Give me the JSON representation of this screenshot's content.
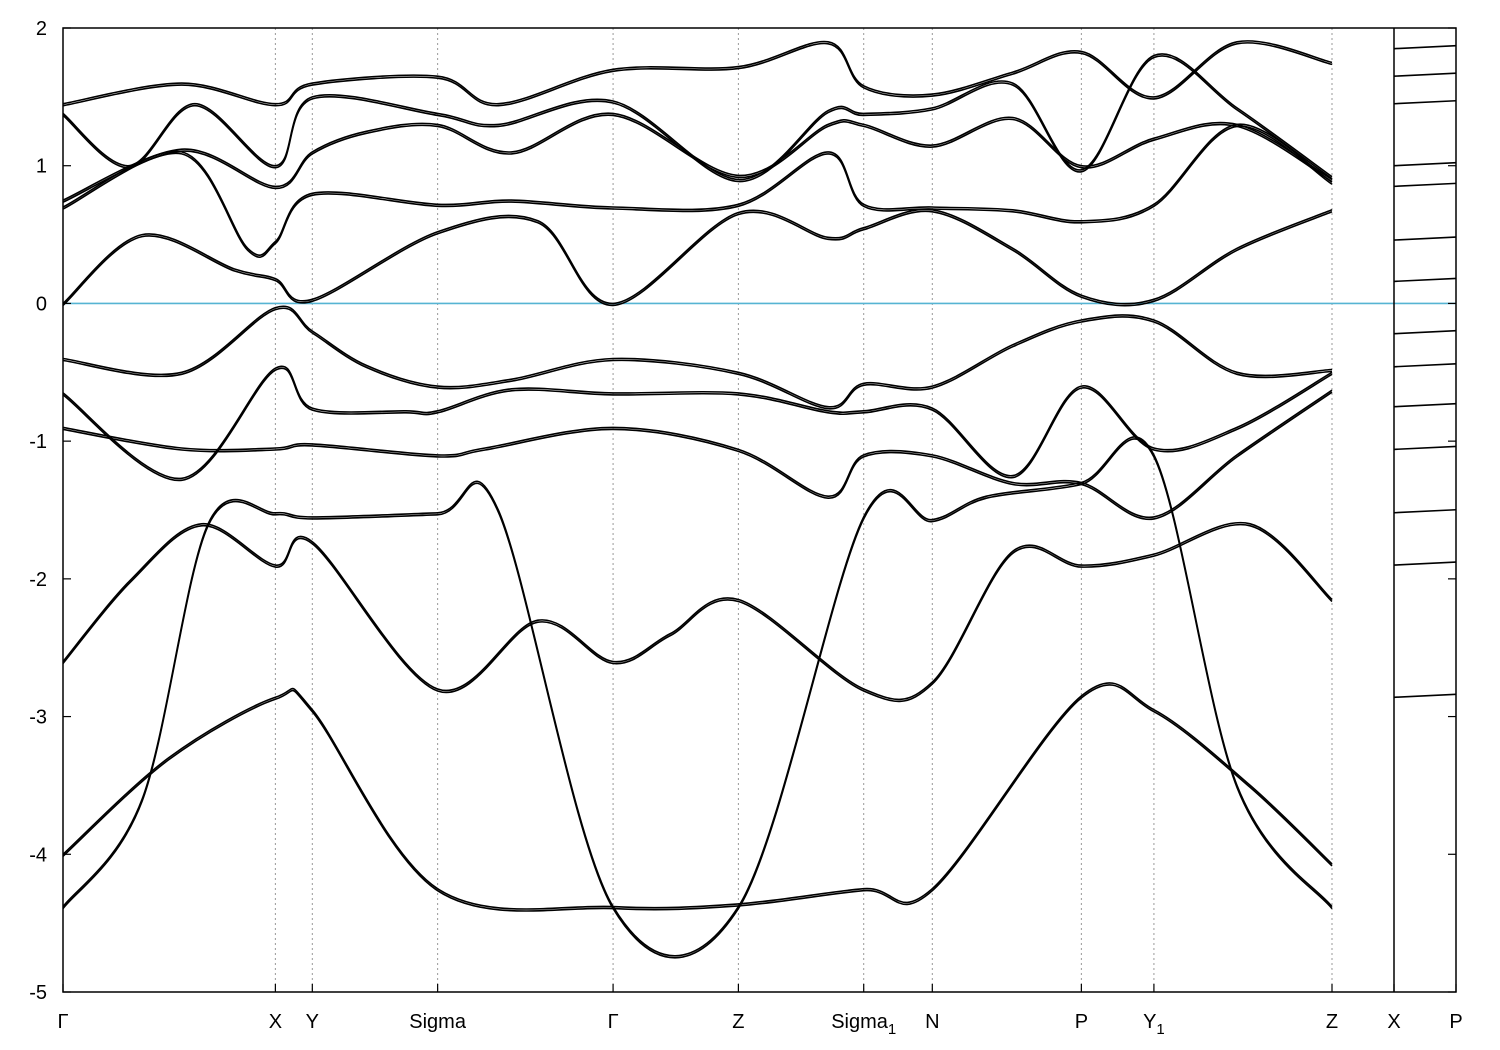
{
  "chart_data": {
    "type": "line",
    "title": "",
    "xlabel": "",
    "ylabel": "",
    "ylim": [
      -5,
      2
    ],
    "y_ticks": [
      "2",
      "1",
      "0",
      "-1",
      "-2",
      "-3",
      "-4",
      "-5"
    ],
    "y_tick_values": [
      2,
      1,
      0,
      -1,
      -2,
      -3,
      -4,
      -5
    ],
    "x_ticks": [
      "Γ",
      "X",
      "Y",
      "Sigma",
      "Γ",
      "Z",
      "Sigma",
      "N",
      "P",
      "Y",
      "Z",
      "X",
      "P"
    ],
    "x_tick_subscripts": [
      "",
      "",
      "",
      "",
      "",
      "",
      "1",
      "",
      "",
      "1",
      "",
      "",
      ""
    ],
    "x_tick_positions": [
      0,
      1.61,
      1.89,
      2.84,
      4.17,
      5.12,
      6.07,
      6.59,
      7.72,
      8.27,
      9.62,
      10.09,
      10.56
    ],
    "x_range": [
      0,
      10.56
    ],
    "segment_break_at": 10.09,
    "grid": "vertical dotted lines at high-symmetry points",
    "fermi_level": 0,
    "fermi_color": "#56b4d3",
    "series": [
      {
        "x": [
          0,
          0.52,
          1.05,
          1.61,
          1.89,
          2.84,
          3.6,
          4.17,
          4.6,
          5.12,
          6.07,
          6.59,
          7.2,
          7.72,
          8.27,
          9.0,
          9.62
        ],
        "values": [
          -2.6,
          -2.0,
          -1.6,
          -1.9,
          -1.73,
          -2.8,
          -2.3,
          -2.6,
          -2.4,
          -2.15,
          -2.8,
          -2.75,
          -1.8,
          -1.9,
          -1.82,
          -1.6,
          -2.15
        ]
      },
      {
        "x": [
          0,
          0.8,
          1.61,
          1.89,
          2.84,
          4.17,
          5.12,
          6.07,
          6.59,
          7.72,
          8.27,
          9.0,
          9.62
        ],
        "values": [
          -4.0,
          -3.3,
          -2.86,
          -2.95,
          -4.25,
          -4.38,
          -4.36,
          -4.25,
          -4.25,
          -2.85,
          -2.95,
          -3.5,
          -4.07
        ]
      },
      {
        "x": [
          0,
          0.6,
          1.1,
          1.61,
          1.89,
          2.84,
          3.3,
          4.17,
          5.12,
          6.07,
          6.59,
          7.0,
          7.72,
          8.27,
          8.9,
          9.62
        ],
        "values": [
          -4.38,
          -3.6,
          -1.6,
          -1.52,
          -1.55,
          -1.52,
          -1.5,
          -4.38,
          -4.38,
          -1.55,
          -1.57,
          -1.4,
          -1.3,
          -1.1,
          -3.5,
          -4.38
        ]
      },
      {
        "x": [
          0,
          0.9,
          1.61,
          1.89,
          2.6,
          2.84,
          3.4,
          4.17,
          5.12,
          5.8,
          6.07,
          6.59,
          7.2,
          7.72,
          8.27,
          8.9,
          9.62
        ],
        "values": [
          -0.65,
          -1.27,
          -0.47,
          -0.76,
          -0.78,
          -0.78,
          -0.62,
          -0.65,
          -0.65,
          -0.78,
          -0.78,
          -0.76,
          -1.25,
          -0.6,
          -1.05,
          -0.9,
          -0.5
        ]
      },
      {
        "x": [
          0,
          0.9,
          1.61,
          1.89,
          2.84,
          3.2,
          4.17,
          5.12,
          5.8,
          6.07,
          6.59,
          7.2,
          7.72,
          8.27,
          8.9,
          9.62
        ],
        "values": [
          -0.9,
          -1.05,
          -1.05,
          -1.02,
          -1.1,
          -1.05,
          -0.9,
          -1.06,
          -1.4,
          -1.1,
          -1.1,
          -1.3,
          -1.3,
          -1.55,
          -1.1,
          -0.63
        ]
      },
      {
        "x": [
          0,
          0.9,
          1.61,
          1.89,
          2.3,
          2.84,
          3.4,
          4.17,
          5.12,
          5.8,
          6.07,
          6.59,
          7.2,
          7.72,
          8.27,
          8.9,
          9.62
        ],
        "values": [
          -0.4,
          -0.5,
          -0.03,
          -0.2,
          -0.45,
          -0.6,
          -0.55,
          -0.4,
          -0.5,
          -0.75,
          -0.58,
          -0.6,
          -0.3,
          -0.12,
          -0.12,
          -0.5,
          -0.48
        ]
      },
      {
        "x": [
          0,
          0.6,
          1.3,
          1.61,
          1.89,
          2.84,
          3.6,
          4.17,
          5.12,
          5.8,
          6.07,
          6.59,
          7.2,
          7.72,
          8.27,
          8.9,
          9.62
        ],
        "values": [
          0.0,
          0.5,
          0.25,
          0.18,
          0.03,
          0.52,
          0.6,
          0.0,
          0.66,
          0.48,
          0.55,
          0.68,
          0.4,
          0.06,
          0.03,
          0.4,
          0.68
        ]
      },
      {
        "x": [
          0,
          0.9,
          1.4,
          1.61,
          1.89,
          2.84,
          3.4,
          4.17,
          5.12,
          5.8,
          6.07,
          6.59,
          7.2,
          7.72,
          8.27,
          8.9,
          9.62
        ],
        "values": [
          0.7,
          1.1,
          0.4,
          0.45,
          0.8,
          0.72,
          0.75,
          0.7,
          0.72,
          1.1,
          0.72,
          0.7,
          0.68,
          0.6,
          0.72,
          1.3,
          0.88
        ]
      },
      {
        "x": [
          0,
          0.9,
          1.61,
          1.89,
          2.3,
          2.84,
          3.4,
          4.17,
          5.12,
          5.8,
          6.07,
          6.59,
          7.2,
          7.72,
          8.27,
          8.9,
          9.62
        ],
        "values": [
          0.75,
          1.12,
          0.85,
          1.1,
          1.25,
          1.3,
          1.1,
          1.38,
          0.93,
          1.3,
          1.3,
          1.15,
          1.35,
          1.0,
          1.2,
          1.3,
          0.9
        ]
      },
      {
        "x": [
          0,
          0.5,
          1.0,
          1.61,
          1.89,
          2.84,
          3.3,
          4.17,
          5.12,
          5.8,
          6.07,
          6.59,
          7.2,
          7.72,
          8.27,
          8.9,
          9.62
        ],
        "values": [
          1.38,
          1.0,
          1.45,
          1.0,
          1.5,
          1.38,
          1.3,
          1.47,
          0.9,
          1.4,
          1.38,
          1.42,
          1.6,
          0.97,
          1.8,
          1.42,
          0.92
        ]
      },
      {
        "x": [
          0,
          0.9,
          1.61,
          1.89,
          2.84,
          3.3,
          4.17,
          5.12,
          5.8,
          6.07,
          6.59,
          7.2,
          7.72,
          8.27,
          8.9,
          9.62
        ],
        "values": [
          1.45,
          1.6,
          1.45,
          1.6,
          1.65,
          1.45,
          1.7,
          1.72,
          1.9,
          1.58,
          1.52,
          1.68,
          1.83,
          1.5,
          1.9,
          1.75
        ]
      }
    ],
    "right_panel_levels": [
      1.85,
      1.65,
      1.45,
      1.0,
      0.85,
      0.46,
      0.16,
      -0.22,
      -0.46,
      -0.75,
      -1.06,
      -1.52,
      -1.9,
      -2.86
    ]
  }
}
